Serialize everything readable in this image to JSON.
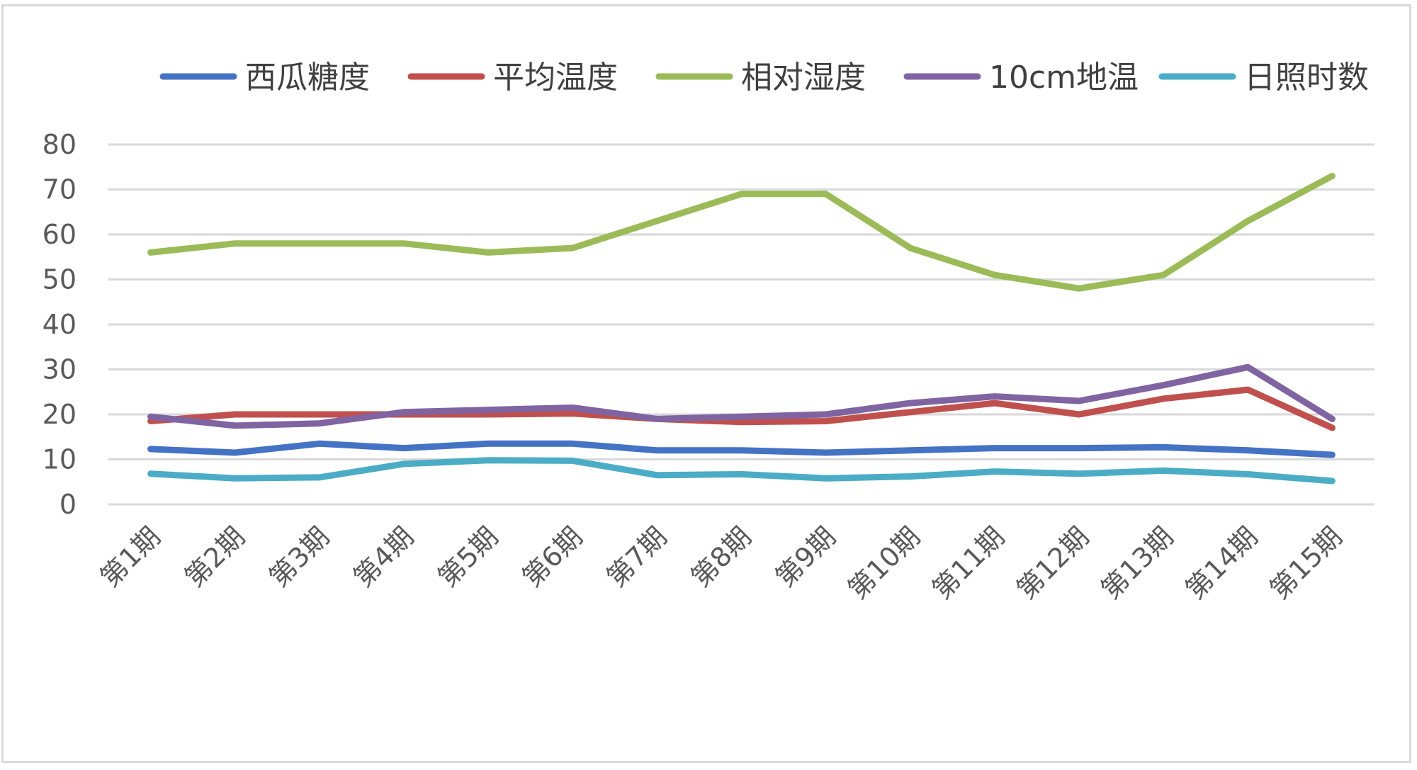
{
  "chart_data": {
    "type": "line",
    "title": "",
    "xlabel": "",
    "ylabel": "",
    "ylim": [
      0,
      80
    ],
    "yticks": [
      0,
      10,
      20,
      30,
      40,
      50,
      60,
      70,
      80
    ],
    "grid": true,
    "legend_position": "top",
    "categories": [
      "第1期",
      "第2期",
      "第3期",
      "第4期",
      "第5期",
      "第6期",
      "第7期",
      "第8期",
      "第9期",
      "第10期",
      "第11期",
      "第12期",
      "第13期",
      "第14期",
      "第15期"
    ],
    "series": [
      {
        "name": "西瓜糖度",
        "color": "#4472c4",
        "values": [
          12.3,
          11.5,
          13.5,
          12.5,
          13.5,
          13.5,
          12.0,
          12.0,
          11.5,
          12.0,
          12.5,
          12.5,
          12.7,
          12.0,
          11.0
        ]
      },
      {
        "name": "平均温度",
        "color": "#c0504d",
        "values": [
          18.5,
          20.0,
          20.0,
          20.0,
          20.0,
          20.2,
          19.0,
          18.3,
          18.5,
          20.5,
          22.5,
          20.0,
          23.5,
          25.5,
          17.0
        ]
      },
      {
        "name": "相对湿度",
        "color": "#9bbb59",
        "values": [
          56,
          58,
          58,
          58,
          56,
          57,
          63,
          69,
          69,
          57,
          51,
          48,
          51,
          63,
          73
        ]
      },
      {
        "name": "10cm地温",
        "color": "#8064a2",
        "values": [
          19.5,
          17.5,
          18.0,
          20.5,
          21.0,
          21.5,
          19.0,
          19.5,
          20.0,
          22.5,
          24.0,
          23.0,
          26.5,
          30.5,
          19.0
        ]
      },
      {
        "name": "日照时数",
        "color": "#4bacc6",
        "values": [
          6.8,
          5.8,
          6.0,
          9.0,
          9.8,
          9.7,
          6.5,
          6.7,
          5.8,
          6.2,
          7.3,
          6.8,
          7.5,
          6.7,
          5.2
        ]
      }
    ]
  }
}
